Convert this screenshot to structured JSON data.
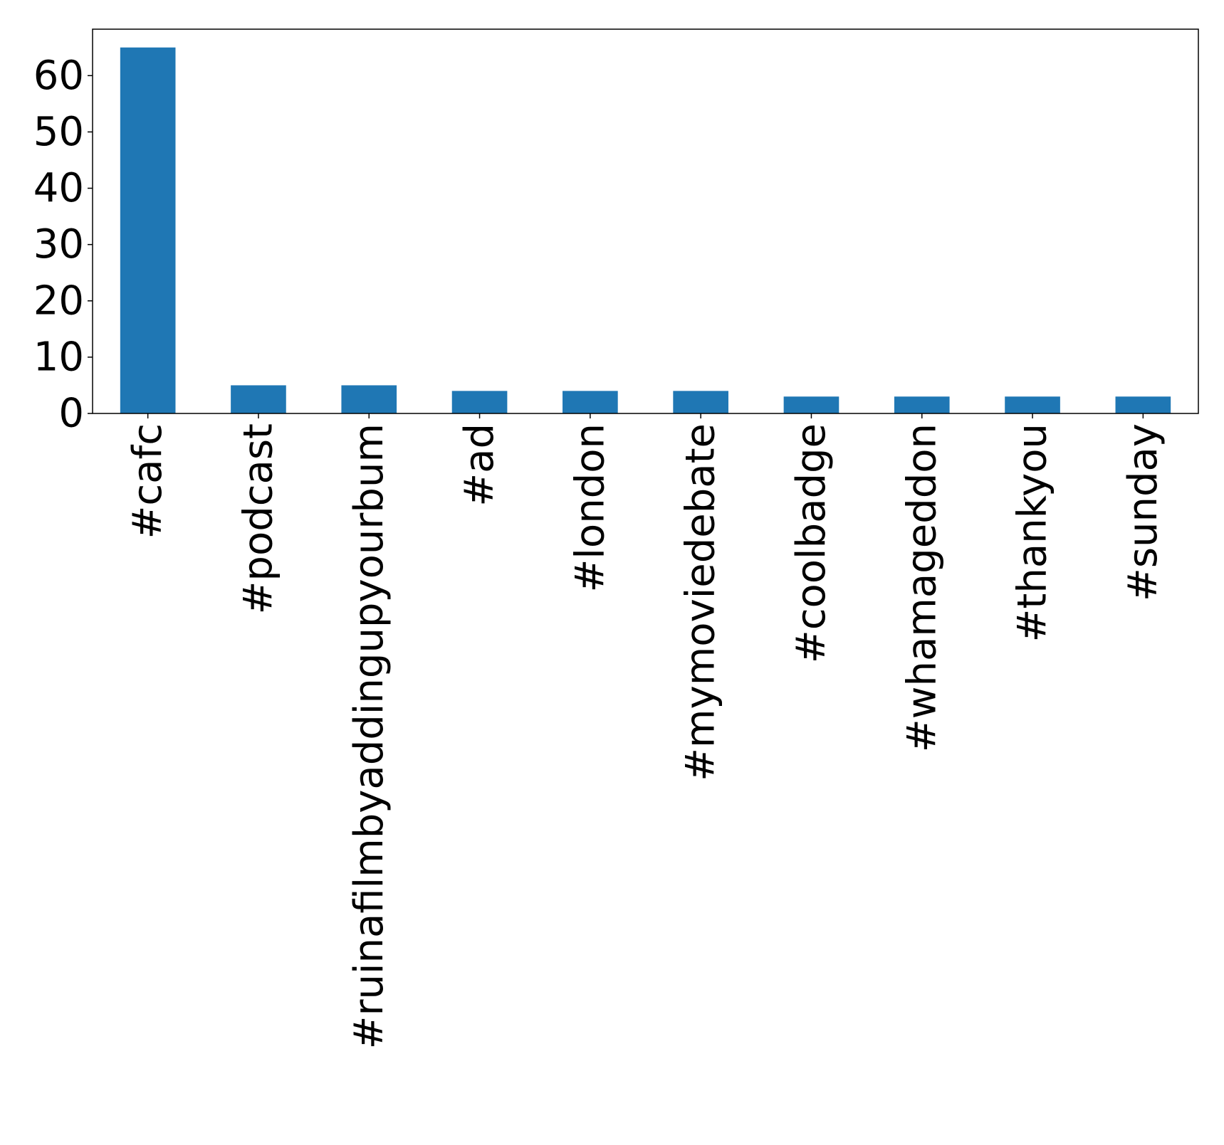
{
  "chart_data": {
    "type": "bar",
    "title": "",
    "xlabel": "",
    "ylabel": "",
    "categories": [
      "#cafc",
      "#podcast",
      "#ruinafilmbyaddingupyourbum",
      "#ad",
      "#london",
      "#mymoviedebate",
      "#coolbadge",
      "#whamageddon",
      "#thankyou",
      "#sunday"
    ],
    "values": [
      65,
      5,
      5,
      4,
      4,
      4,
      3,
      3,
      3,
      3
    ],
    "ylim": [
      0,
      68.25
    ],
    "yticks": [
      0,
      10,
      20,
      30,
      40,
      50,
      60
    ],
    "ytick_labels": [
      "0",
      "10",
      "20",
      "30",
      "40",
      "50",
      "60"
    ],
    "bar_color": "#1f77b4",
    "grid": false,
    "legend": "none",
    "xtick_rotation": "vertical"
  }
}
